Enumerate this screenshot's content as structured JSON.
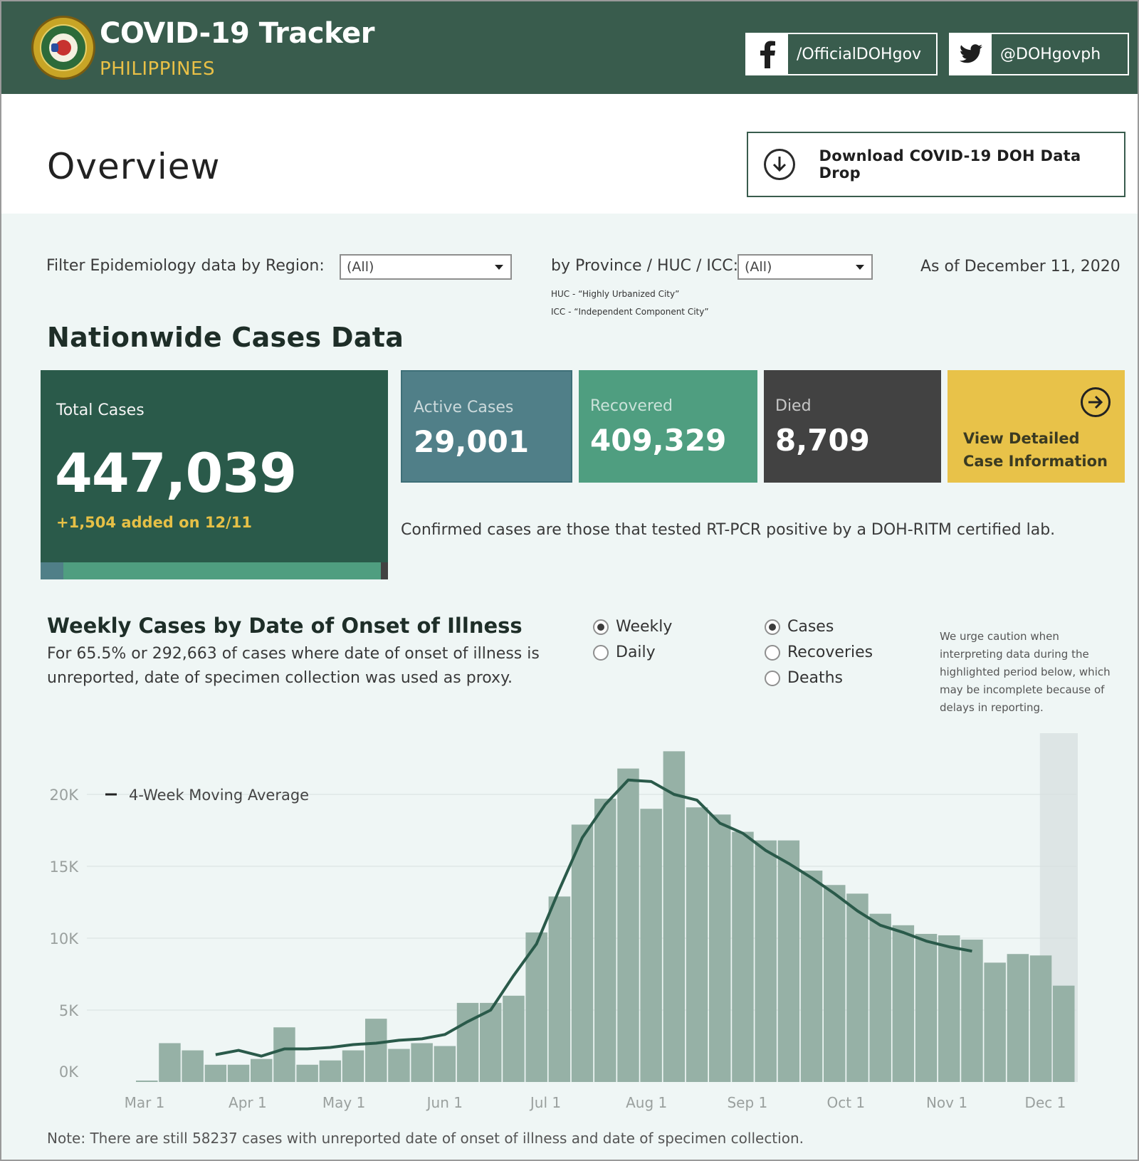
{
  "header": {
    "title": "COVID-19 Tracker",
    "subtitle": "PHILIPPINES",
    "facebook": "/OfficialDOHgov",
    "twitter": "@DOHgovph"
  },
  "overview": {
    "title": "Overview",
    "download_label": "Download COVID-19 DOH Data Drop"
  },
  "filters": {
    "region_label": "Filter Epidemiology data by Region:",
    "region_value": "(All)",
    "province_label": "by Province / HUC / ICC:",
    "province_value": "(All)",
    "huc_note": "HUC - “Highly Urbanized City”",
    "icc_note": "ICC - “Independent Component City”",
    "as_of": "As of December 11, 2020"
  },
  "cases": {
    "heading": "Nationwide Cases Data",
    "total_label": "Total Cases",
    "total_value": "447,039",
    "added": "+1,504 added on 12/11",
    "active_label": "Active Cases",
    "active_value": "29,001",
    "recovered_label": "Recovered",
    "recovered_value": "409,329",
    "died_label": "Died",
    "died_value": "8,709",
    "detail_line1": "View Detailed",
    "detail_line2": "Case Information",
    "confirmed_note": "Confirmed cases are those that tested RT-PCR positive by a DOH-RITM certified lab.",
    "composition": [
      {
        "name": "active",
        "value": 29001,
        "color": "#507f88"
      },
      {
        "name": "recovered",
        "value": 409329,
        "color": "#4f9e80"
      },
      {
        "name": "died",
        "value": 8709,
        "color": "#424242"
      }
    ]
  },
  "weekly": {
    "heading": "Weekly Cases by Date of Onset of Illness",
    "sub_line1": "For 65.5% or 292,663 of cases where date of onset of illness is",
    "sub_line2": "unreported, date of specimen collection was used as proxy.",
    "period_options": [
      {
        "label": "Weekly",
        "selected": true
      },
      {
        "label": "Daily",
        "selected": false
      }
    ],
    "metric_options": [
      {
        "label": "Cases",
        "selected": true
      },
      {
        "label": "Recoveries",
        "selected": false
      },
      {
        "label": "Deaths",
        "selected": false
      }
    ],
    "caution": [
      "We urge caution when",
      "interpreting data during the",
      "highlighted period below, which",
      "may be incomplete because of",
      "delays in reporting."
    ],
    "note": "Note: There are still 58237 cases with unreported date of onset of illness and date of specimen collection."
  },
  "chart_data": {
    "type": "bar",
    "legend": "4-Week Moving Average",
    "legend_position": "top-left",
    "y_ticks": [
      "20K",
      "15K",
      "10K",
      "5K",
      "0K"
    ],
    "y_tick_values": [
      20000,
      15000,
      10000,
      5000,
      0
    ],
    "ylim": [
      0,
      23500
    ],
    "x_ticks": [
      "Mar 1",
      "Apr 1",
      "May 1",
      "Jun 1",
      "Jul 1",
      "Aug 1",
      "Sep 1",
      "Oct 1",
      "Nov 1",
      "Dec 1"
    ],
    "x_tick_week_index": [
      0,
      4.5,
      8.7,
      13.1,
      17.5,
      21.9,
      26.3,
      30.6,
      35,
      39.3
    ],
    "bar_color": "#96b1a6",
    "line_color": "#2a5a4a",
    "highlight_color": "#dde5e5",
    "highlight_from_week": 39,
    "values": [
      100,
      2700,
      2200,
      1200,
      1200,
      1600,
      3800,
      1200,
      1500,
      2200,
      4400,
      2300,
      2700,
      2500,
      5500,
      5500,
      6000,
      10400,
      12900,
      17900,
      19700,
      21800,
      19000,
      23000,
      19100,
      18600,
      17400,
      16800,
      16800,
      14700,
      13700,
      13100,
      11700,
      10900,
      10300,
      10200,
      9900,
      8300,
      8900,
      8800,
      6700
    ],
    "moving_average": [
      null,
      null,
      null,
      1900,
      2200,
      1800,
      2300,
      2300,
      2400,
      2600,
      2700,
      2900,
      3000,
      3300,
      4200,
      5000,
      7400,
      9600,
      13400,
      17000,
      19300,
      21000,
      20900,
      20000,
      19600,
      18000,
      17300,
      16100,
      15200,
      14200,
      13100,
      11900,
      10900,
      10400,
      9800,
      9400,
      9100,
      null,
      null,
      null,
      null
    ]
  }
}
